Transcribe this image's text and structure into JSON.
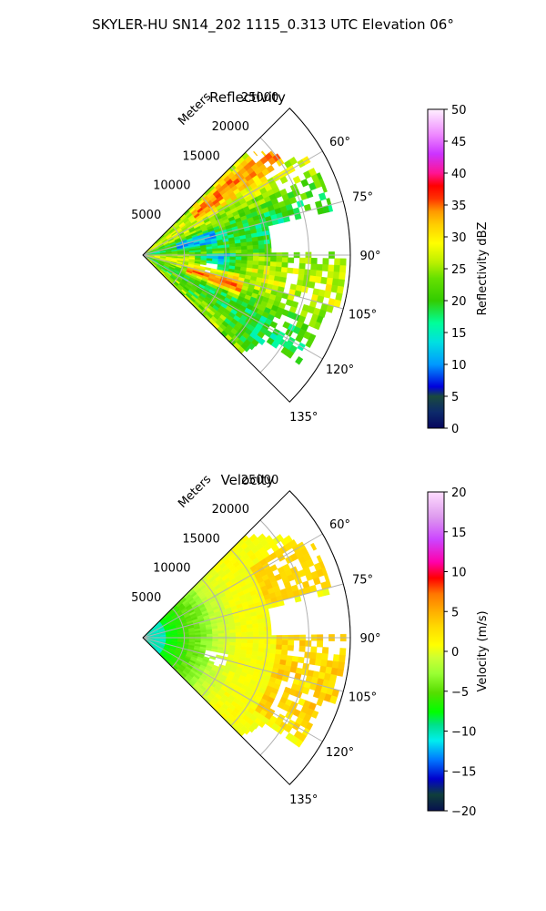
{
  "figure": {
    "suptitle": "SKYLER-HU  SN14_202  1115_0.313 UTC Elevation 06°"
  },
  "chart_data": [
    {
      "type": "heatmap",
      "projection": "polar sector",
      "title": "Reflectivity",
      "radial_label": "Meters",
      "radial_ticks": [
        5000,
        10000,
        15000,
        20000,
        25000
      ],
      "radial_range": [
        0,
        25000
      ],
      "angle_ticks": [
        "60°",
        "75°",
        "90°",
        "105°",
        "120°",
        "135°"
      ],
      "angle_range_deg": [
        45,
        135
      ],
      "colorbar": {
        "label": "Reflectivity dBZ",
        "range": [
          0,
          50
        ],
        "ticks": [
          0,
          5,
          10,
          15,
          20,
          25,
          30,
          35,
          40,
          45,
          50
        ]
      },
      "grid": true,
      "field_summary": "Mostly 18-28 dBZ echoes; 30-37 dBZ bands near 50° and 108° azimuth at 8-20 km; ~12 dBZ patches near 95° at 7-11 km"
    },
    {
      "type": "heatmap",
      "projection": "polar sector",
      "title": "Velocity",
      "radial_label": "Meters",
      "radial_ticks": [
        5000,
        10000,
        15000,
        20000,
        25000
      ],
      "radial_range": [
        0,
        25000
      ],
      "angle_ticks": [
        "60°",
        "75°",
        "90°",
        "105°",
        "120°",
        "135°"
      ],
      "angle_range_deg": [
        45,
        135
      ],
      "colorbar": {
        "label": "Velocity (m/s)",
        "range": [
          -20,
          20
        ],
        "ticks": [
          -20,
          -15,
          -10,
          -5,
          0,
          5,
          10,
          15,
          20
        ]
      },
      "grid": true,
      "field_summary": "About -10 m/s near the radar, -6 to -3 m/s out to 8 km, 0 to +3 m/s beyond 10 km, +4 to +6 m/s patches near 60° and 92-120° at 17-25 km"
    }
  ],
  "colors": {
    "reflectivity_stops": [
      "#06065e",
      "#0d2a6b",
      "#1a4a3e",
      "#0055ff",
      "#0099ff",
      "#00e0e0",
      "#00ff99",
      "#33cc00",
      "#66e000",
      "#aaf000",
      "#ffff00",
      "#ffcc00",
      "#ff9900",
      "#ff3300",
      "#ff0000",
      "#ff1493",
      "#cc33ff",
      "#ee88ff",
      "#ffccff",
      "#fff0ff"
    ],
    "velocity_stops": [
      "#07104f",
      "#0f3f3a",
      "#0000cc",
      "#0077ff",
      "#00eeee",
      "#00e08a",
      "#00ff00",
      "#55dd00",
      "#99ff33",
      "#ccff33",
      "#ffff00",
      "#ffd700",
      "#ffaa00",
      "#ff7700",
      "#ff0000",
      "#ff00aa",
      "#cc44ff",
      "#dd99ee",
      "#ffddff"
    ]
  }
}
